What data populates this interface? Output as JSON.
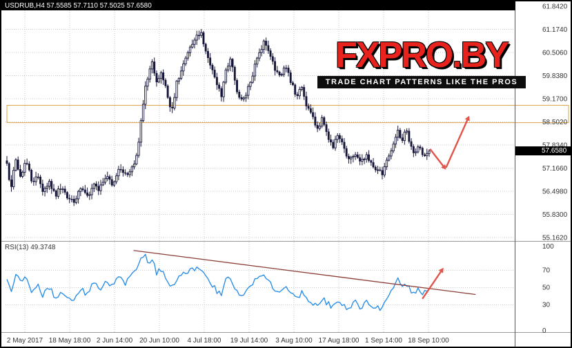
{
  "header": {
    "ohlc_line": "USDRUB,H4 57.5585 57.7110 57.5025 57.6580"
  },
  "logo": {
    "brand": "FXPRO.BY",
    "tagline": "TRADE CHART PATTERNS LIKE THE PROS"
  },
  "price_scale": {
    "labels": [
      "61.8420",
      "61.1740",
      "60.5060",
      "59.8380",
      "59.1700",
      "58.5020",
      "57.8340",
      "57.1660",
      "56.4980",
      "55.8300",
      "55.1620"
    ],
    "current": "57.6580"
  },
  "rsi_panel": {
    "label": "RSI(13) 49.3748",
    "scale_labels": [
      "100",
      "70",
      "50",
      "30",
      "0"
    ]
  },
  "time_scale": {
    "labels": [
      "2 May 2017",
      "18 May 18:00",
      "2 Jun 14:00",
      "20 Jun 10:00",
      "4 Jul 18:00",
      "19 Jul 14:00",
      "3 Aug 10:00",
      "17 Aug 18:00",
      "1 Sep 14:00",
      "18 Sep 10:00"
    ]
  },
  "colors": {
    "candle": "#15153a",
    "rsi_line": "#2b8fe8",
    "trendline": "#8a3b34",
    "arrow": "#e0544a",
    "zone_border": "#dda448",
    "grid": "#c9c9c9",
    "axis_text": "#333333",
    "tag_bg": "#000000",
    "tag_text": "#ffffff",
    "logo_red": "#e8231e",
    "logo_black": "#111111"
  },
  "chart_data": {
    "type": "candlestick",
    "symbol": "USDRUB",
    "timeframe": "H4",
    "quote": {
      "open": 57.5585,
      "high": 57.711,
      "low": 57.5025,
      "close": 57.658,
      "last": 57.658
    },
    "y_axis": {
      "ticks": [
        61.842,
        61.174,
        60.506,
        59.838,
        59.17,
        58.502,
        57.834,
        57.166,
        56.498,
        55.83,
        55.162
      ],
      "range": [
        55.162,
        61.842
      ]
    },
    "x_axis": {
      "ticks": [
        "2 May 2017",
        "18 May 18:00",
        "2 Jun 14:00",
        "20 Jun 10:00",
        "4 Jul 18:00",
        "19 Jul 14:00",
        "3 Aug 10:00",
        "17 Aug 18:00",
        "1 Sep 14:00",
        "18 Sep 10:00"
      ]
    },
    "price_path": [
      [
        0.0,
        57.3
      ],
      [
        0.008,
        56.5
      ],
      [
        0.02,
        57.4
      ],
      [
        0.032,
        56.95
      ],
      [
        0.046,
        57.35
      ],
      [
        0.06,
        56.75
      ],
      [
        0.072,
        57.05
      ],
      [
        0.085,
        56.55
      ],
      [
        0.1,
        56.8
      ],
      [
        0.115,
        56.4
      ],
      [
        0.13,
        56.65
      ],
      [
        0.145,
        56.3
      ],
      [
        0.16,
        56.2
      ],
      [
        0.175,
        56.55
      ],
      [
        0.19,
        56.3
      ],
      [
        0.205,
        56.7
      ],
      [
        0.22,
        56.55
      ],
      [
        0.235,
        56.9
      ],
      [
        0.25,
        56.7
      ],
      [
        0.265,
        57.15
      ],
      [
        0.28,
        56.95
      ],
      [
        0.295,
        57.1
      ],
      [
        0.305,
        57.3
      ],
      [
        0.315,
        58.2
      ],
      [
        0.325,
        59.3
      ],
      [
        0.335,
        59.9
      ],
      [
        0.345,
        60.2
      ],
      [
        0.355,
        59.6
      ],
      [
        0.365,
        59.95
      ],
      [
        0.378,
        59.4
      ],
      [
        0.39,
        58.8
      ],
      [
        0.402,
        59.6
      ],
      [
        0.415,
        60.1
      ],
      [
        0.428,
        60.5
      ],
      [
        0.44,
        60.8
      ],
      [
        0.458,
        61.1
      ],
      [
        0.47,
        60.6
      ],
      [
        0.482,
        60.2
      ],
      [
        0.495,
        59.65
      ],
      [
        0.508,
        59.3
      ],
      [
        0.52,
        60.05
      ],
      [
        0.53,
        60.35
      ],
      [
        0.543,
        59.45
      ],
      [
        0.556,
        59.1
      ],
      [
        0.568,
        59.35
      ],
      [
        0.58,
        59.8
      ],
      [
        0.595,
        60.4
      ],
      [
        0.61,
        60.9
      ],
      [
        0.622,
        60.5
      ],
      [
        0.635,
        60.05
      ],
      [
        0.648,
        59.85
      ],
      [
        0.66,
        60.15
      ],
      [
        0.672,
        59.7
      ],
      [
        0.685,
        59.2
      ],
      [
        0.698,
        59.5
      ],
      [
        0.71,
        58.95
      ],
      [
        0.722,
        58.65
      ],
      [
        0.735,
        58.3
      ],
      [
        0.748,
        58.6
      ],
      [
        0.76,
        58.1
      ],
      [
        0.772,
        57.8
      ],
      [
        0.785,
        58.15
      ],
      [
        0.798,
        57.7
      ],
      [
        0.812,
        57.4
      ],
      [
        0.825,
        57.6
      ],
      [
        0.838,
        57.3
      ],
      [
        0.852,
        57.5
      ],
      [
        0.865,
        57.2
      ],
      [
        0.878,
        57.1
      ],
      [
        0.89,
        57.0
      ],
      [
        0.902,
        57.4
      ],
      [
        0.912,
        57.7
      ],
      [
        0.925,
        58.3
      ],
      [
        0.935,
        57.95
      ],
      [
        0.945,
        58.25
      ],
      [
        0.955,
        57.9
      ],
      [
        0.965,
        57.6
      ],
      [
        0.975,
        57.8
      ],
      [
        0.985,
        57.5
      ],
      [
        1.0,
        57.658
      ]
    ],
    "indicator": {
      "name": "RSI",
      "period": 13,
      "value": 49.3748,
      "range": [
        0,
        100
      ],
      "guides": [
        70,
        50,
        30
      ],
      "path": [
        [
          0.0,
          62
        ],
        [
          0.01,
          46
        ],
        [
          0.022,
          68
        ],
        [
          0.035,
          54
        ],
        [
          0.046,
          64
        ],
        [
          0.06,
          44
        ],
        [
          0.072,
          56
        ],
        [
          0.085,
          40
        ],
        [
          0.1,
          50
        ],
        [
          0.115,
          38
        ],
        [
          0.13,
          47
        ],
        [
          0.145,
          36
        ],
        [
          0.16,
          33
        ],
        [
          0.175,
          49
        ],
        [
          0.19,
          41
        ],
        [
          0.205,
          55
        ],
        [
          0.22,
          49
        ],
        [
          0.235,
          59
        ],
        [
          0.25,
          51
        ],
        [
          0.265,
          61
        ],
        [
          0.28,
          54
        ],
        [
          0.295,
          62
        ],
        [
          0.305,
          72
        ],
        [
          0.315,
          82
        ],
        [
          0.325,
          88
        ],
        [
          0.335,
          80
        ],
        [
          0.345,
          84
        ],
        [
          0.355,
          66
        ],
        [
          0.365,
          71
        ],
        [
          0.378,
          58
        ],
        [
          0.39,
          50
        ],
        [
          0.402,
          61
        ],
        [
          0.415,
          65
        ],
        [
          0.428,
          69
        ],
        [
          0.44,
          71
        ],
        [
          0.458,
          74
        ],
        [
          0.47,
          61
        ],
        [
          0.482,
          56
        ],
        [
          0.495,
          47
        ],
        [
          0.508,
          43
        ],
        [
          0.52,
          59
        ],
        [
          0.53,
          63
        ],
        [
          0.543,
          45
        ],
        [
          0.556,
          40
        ],
        [
          0.568,
          46
        ],
        [
          0.58,
          54
        ],
        [
          0.595,
          62
        ],
        [
          0.61,
          67
        ],
        [
          0.622,
          56
        ],
        [
          0.635,
          49
        ],
        [
          0.648,
          46
        ],
        [
          0.66,
          53
        ],
        [
          0.672,
          45
        ],
        [
          0.685,
          37
        ],
        [
          0.698,
          45
        ],
        [
          0.71,
          37
        ],
        [
          0.722,
          33
        ],
        [
          0.735,
          29
        ],
        [
          0.748,
          39
        ],
        [
          0.76,
          31
        ],
        [
          0.772,
          27
        ],
        [
          0.785,
          37
        ],
        [
          0.798,
          29
        ],
        [
          0.812,
          25
        ],
        [
          0.825,
          33
        ],
        [
          0.838,
          27
        ],
        [
          0.852,
          35
        ],
        [
          0.865,
          29
        ],
        [
          0.878,
          27
        ],
        [
          0.89,
          26
        ],
        [
          0.902,
          40
        ],
        [
          0.912,
          47
        ],
        [
          0.925,
          59
        ],
        [
          0.935,
          49
        ],
        [
          0.945,
          57
        ],
        [
          0.955,
          47
        ],
        [
          0.965,
          41
        ],
        [
          0.975,
          51
        ],
        [
          0.985,
          44
        ],
        [
          1.0,
          49.4
        ]
      ]
    },
    "annotations": {
      "resistance_zone": {
        "price_top": 58.98,
        "price_bottom": 58.48
      },
      "price_arrows": [
        {
          "dir": "down",
          "from": [
            1.002,
            57.72
          ],
          "to": [
            1.04,
            57.12
          ]
        },
        {
          "dir": "up",
          "from": [
            1.04,
            57.18
          ],
          "to": [
            1.095,
            58.68
          ]
        }
      ],
      "rsi_trendline": {
        "from": [
          0.3,
          93
        ],
        "to": [
          1.11,
          42
        ]
      },
      "rsi_arrows": [
        {
          "dir": "up",
          "from": [
            0.984,
            37
          ],
          "to": [
            1.034,
            73
          ]
        }
      ]
    }
  }
}
